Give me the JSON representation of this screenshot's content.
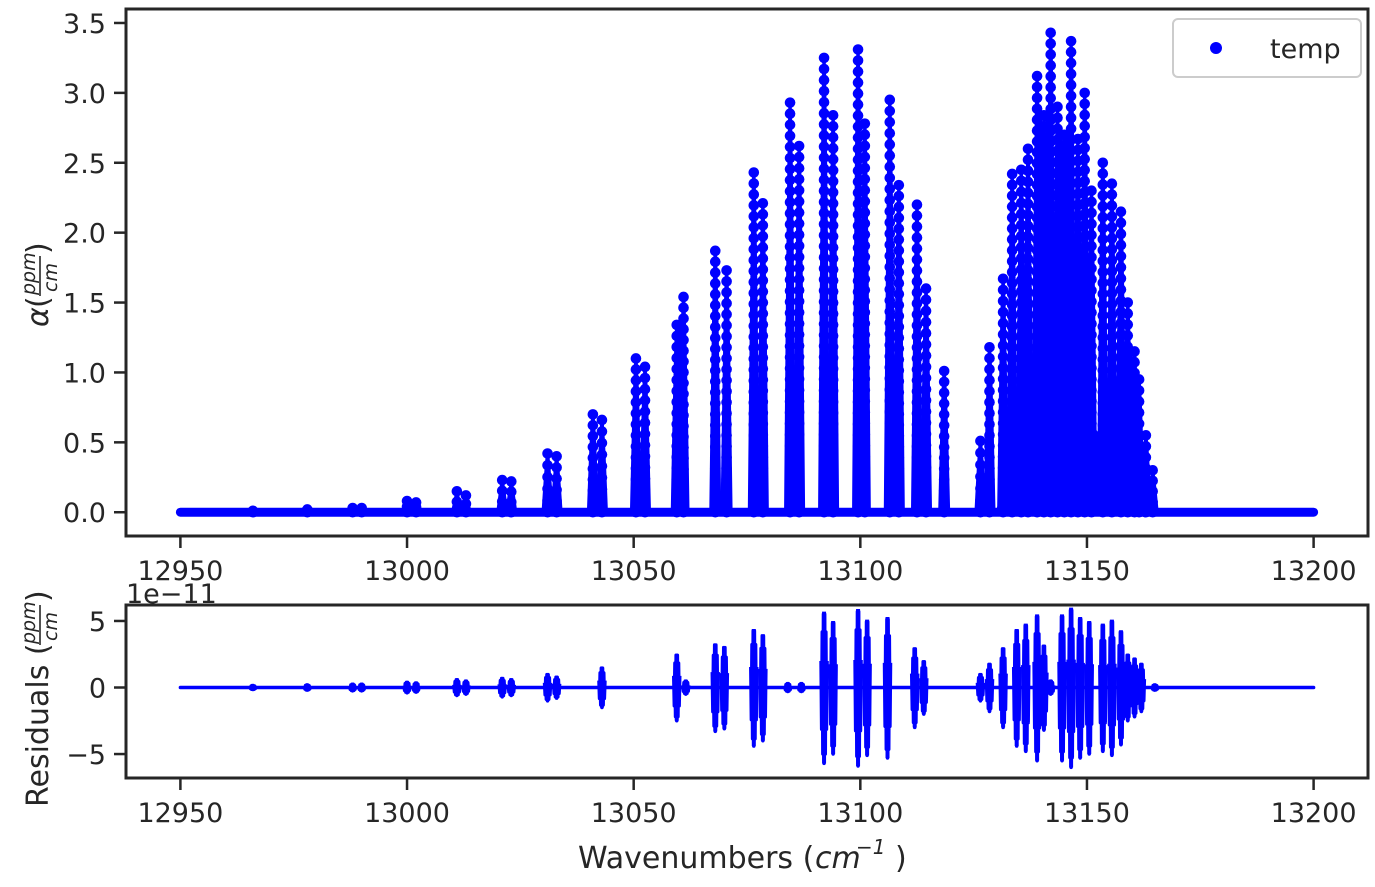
{
  "chart_data": [
    {
      "type": "scatter",
      "panel": "spectrum",
      "xlim": [
        12938,
        13212
      ],
      "ylim": [
        -0.17,
        3.6
      ],
      "xticks": [
        12950,
        13000,
        13050,
        13100,
        13150,
        13200
      ],
      "yticks": [
        0.0,
        0.5,
        1.0,
        1.5,
        2.0,
        2.5,
        3.0,
        3.5
      ],
      "ytick_labels": [
        "0.0",
        "0.5",
        "1.0",
        "1.5",
        "2.0",
        "2.5",
        "3.0",
        "3.5"
      ],
      "ylabel": "α(ppm/cm)",
      "ylabel_parts": {
        "alpha": "α",
        "open": "(",
        "num": "ppm",
        "den": "cm",
        "close": ")"
      },
      "legend": {
        "location": "top-right",
        "entry": "temp"
      },
      "color": "#0000ff",
      "line_width_cm": 0.5,
      "baseline": 0.0,
      "peaks": [
        {
          "x": 12966,
          "y": 0.01
        },
        {
          "x": 12978,
          "y": 0.02
        },
        {
          "x": 12988,
          "y": 0.03
        },
        {
          "x": 12990,
          "y": 0.03
        },
        {
          "x": 13000,
          "y": 0.08
        },
        {
          "x": 13002,
          "y": 0.07
        },
        {
          "x": 13011,
          "y": 0.15
        },
        {
          "x": 13013,
          "y": 0.12
        },
        {
          "x": 13021,
          "y": 0.23
        },
        {
          "x": 13023,
          "y": 0.22
        },
        {
          "x": 13031,
          "y": 0.42
        },
        {
          "x": 13033,
          "y": 0.4
        },
        {
          "x": 13041,
          "y": 0.7
        },
        {
          "x": 13043,
          "y": 0.66
        },
        {
          "x": 13050.5,
          "y": 1.1
        },
        {
          "x": 13052.5,
          "y": 1.04
        },
        {
          "x": 13059.5,
          "y": 1.34
        },
        {
          "x": 13061,
          "y": 1.54
        },
        {
          "x": 13068,
          "y": 1.87
        },
        {
          "x": 13070.5,
          "y": 1.73
        },
        {
          "x": 13076.5,
          "y": 2.43
        },
        {
          "x": 13078.5,
          "y": 2.21
        },
        {
          "x": 13084.5,
          "y": 2.93
        },
        {
          "x": 13086.5,
          "y": 2.62
        },
        {
          "x": 13092,
          "y": 3.25
        },
        {
          "x": 13094,
          "y": 2.84
        },
        {
          "x": 13099.5,
          "y": 3.31
        },
        {
          "x": 13101,
          "y": 2.78
        },
        {
          "x": 13106.5,
          "y": 2.95
        },
        {
          "x": 13108.5,
          "y": 2.34
        },
        {
          "x": 13112.5,
          "y": 2.2
        },
        {
          "x": 13114.5,
          "y": 1.6
        },
        {
          "x": 13118.5,
          "y": 1.01
        },
        {
          "x": 13126.5,
          "y": 0.51
        },
        {
          "x": 13128.5,
          "y": 1.18
        },
        {
          "x": 13131.5,
          "y": 1.67
        },
        {
          "x": 13133.5,
          "y": 2.42
        },
        {
          "x": 13135.5,
          "y": 2.45
        },
        {
          "x": 13137,
          "y": 2.6
        },
        {
          "x": 13139,
          "y": 3.12
        },
        {
          "x": 13140.5,
          "y": 2.84
        },
        {
          "x": 13142,
          "y": 3.43
        },
        {
          "x": 13143.5,
          "y": 2.9
        },
        {
          "x": 13145,
          "y": 2.7
        },
        {
          "x": 13146.5,
          "y": 3.37
        },
        {
          "x": 13148,
          "y": 2.67
        },
        {
          "x": 13149.5,
          "y": 3.0
        },
        {
          "x": 13151,
          "y": 2.3
        },
        {
          "x": 13153.5,
          "y": 2.5
        },
        {
          "x": 13155.5,
          "y": 2.35
        },
        {
          "x": 13157.5,
          "y": 2.15
        },
        {
          "x": 13159,
          "y": 1.5
        },
        {
          "x": 13160.5,
          "y": 1.15
        },
        {
          "x": 13161.5,
          "y": 0.95
        },
        {
          "x": 13163,
          "y": 0.55
        },
        {
          "x": 13164.5,
          "y": 0.3
        }
      ],
      "filled_region": [
        [
          13130,
          0.0
        ],
        [
          13132,
          0.18
        ],
        [
          13134,
          0.35
        ],
        [
          13136,
          0.5
        ],
        [
          13138,
          0.6
        ],
        [
          13140,
          0.7
        ],
        [
          13142,
          0.78
        ],
        [
          13144,
          0.8
        ],
        [
          13146,
          0.78
        ],
        [
          13148,
          0.72
        ],
        [
          13150,
          0.65
        ],
        [
          13152,
          0.58
        ],
        [
          13154,
          0.5
        ],
        [
          13156,
          0.42
        ],
        [
          13158,
          0.3
        ],
        [
          13160,
          0.2
        ],
        [
          13162,
          0.1
        ],
        [
          13164.5,
          0.04
        ],
        [
          13166,
          0.0
        ]
      ]
    },
    {
      "type": "line",
      "panel": "residuals",
      "xlim": [
        12938,
        13212
      ],
      "ylim": [
        -6.8,
        6.2
      ],
      "xticks": [
        12950,
        13000,
        13050,
        13100,
        13150,
        13200
      ],
      "yticks": [
        -5,
        0,
        5
      ],
      "ytick_labels": [
        "−5",
        "0",
        "5"
      ],
      "offset_text": "1e−11",
      "xlabel": "Wavenumbers (cm⁻¹)",
      "xlabel_parts": {
        "text": "Wavenumbers (",
        "unit": "cm",
        "exp": "−1",
        "close": ")"
      },
      "ylabel": "Residuals (ppm/cm)",
      "ylabel_parts": {
        "text": "Residuals (",
        "num": "ppm",
        "den": "cm",
        "close": ")"
      },
      "color": "#0000ff",
      "baseline": 0,
      "oscillations": [
        {
          "x": 12966,
          "a": 0.15
        },
        {
          "x": 12978,
          "a": 0.2
        },
        {
          "x": 12988,
          "a": 0.25
        },
        {
          "x": 12990,
          "a": 0.25
        },
        {
          "x": 13000,
          "a": 0.4
        },
        {
          "x": 13002,
          "a": 0.35
        },
        {
          "x": 13011,
          "a": 0.6
        },
        {
          "x": 13013,
          "a": 0.5
        },
        {
          "x": 13021,
          "a": 0.7
        },
        {
          "x": 13023,
          "a": 0.6
        },
        {
          "x": 13031,
          "a": 1.0
        },
        {
          "x": 13033,
          "a": 0.8
        },
        {
          "x": 13043,
          "a": 1.5
        },
        {
          "x": 13059.5,
          "a": 2.5
        },
        {
          "x": 13061.5,
          "a": 0.5
        },
        {
          "x": 13068,
          "a": 3.3
        },
        {
          "x": 13070,
          "a": 3.1
        },
        {
          "x": 13076.5,
          "a": 4.4
        },
        {
          "x": 13078.5,
          "a": 4.0
        },
        {
          "x": 13084,
          "a": 0.3
        },
        {
          "x": 13087,
          "a": 0.3
        },
        {
          "x": 13092,
          "a": 5.7
        },
        {
          "x": 13094,
          "a": 5.0
        },
        {
          "x": 13099.5,
          "a": 5.9
        },
        {
          "x": 13101.5,
          "a": 5.1
        },
        {
          "x": 13106,
          "a": 5.3
        },
        {
          "x": 13112,
          "a": 3.0
        },
        {
          "x": 13114,
          "a": 2.0
        },
        {
          "x": 13126.5,
          "a": 1.0
        },
        {
          "x": 13128.5,
          "a": 1.8
        },
        {
          "x": 13131.5,
          "a": 3.0
        },
        {
          "x": 13134.5,
          "a": 4.4
        },
        {
          "x": 13136.5,
          "a": 4.8
        },
        {
          "x": 13139,
          "a": 5.5
        },
        {
          "x": 13140.5,
          "a": 3.2
        },
        {
          "x": 13142,
          "a": 0.5
        },
        {
          "x": 13144.5,
          "a": 5.5
        },
        {
          "x": 13146.5,
          "a": 6.0
        },
        {
          "x": 13148.5,
          "a": 5.3
        },
        {
          "x": 13150.5,
          "a": 5.0
        },
        {
          "x": 13153.5,
          "a": 4.8
        },
        {
          "x": 13155.5,
          "a": 5.1
        },
        {
          "x": 13157.5,
          "a": 4.3
        },
        {
          "x": 13159,
          "a": 2.5
        },
        {
          "x": 13160.5,
          "a": 2.2
        },
        {
          "x": 13162,
          "a": 1.8
        },
        {
          "x": 13165,
          "a": 0.2
        }
      ]
    }
  ]
}
